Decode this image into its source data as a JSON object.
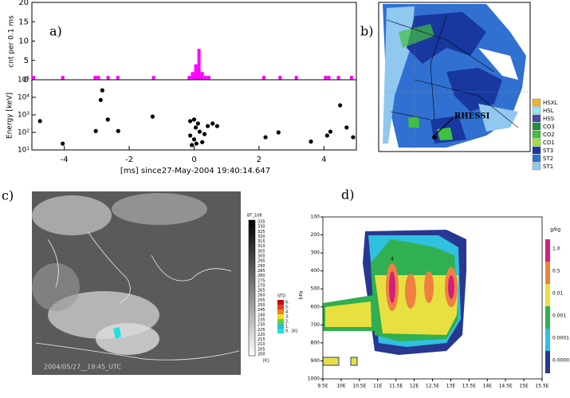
{
  "chart_data": [
    {
      "type": "bar",
      "panel_label": "a)",
      "ylabel": "cnt per 0.1 ms",
      "color": "#ff00ff",
      "x": [
        -4.95,
        -4.05,
        -3.05,
        -2.95,
        -2.65,
        -2.35,
        -1.25,
        -0.15,
        -0.05,
        0.05,
        0.15,
        0.25,
        0.35,
        0.45,
        2.15,
        2.65,
        3.15,
        4.05,
        4.15,
        4.45,
        4.85
      ],
      "values": [
        1,
        1,
        1,
        1,
        1,
        1,
        1,
        1,
        2,
        4,
        8,
        2,
        1,
        1,
        1,
        1,
        1,
        1,
        1,
        1,
        1
      ],
      "xlim": [
        -5,
        5
      ],
      "ylim": [
        0,
        20
      ],
      "yticks": [
        0,
        5,
        10,
        15,
        20
      ]
    },
    {
      "type": "scatter",
      "ylabel": "Energy [keV]",
      "xlabel": "[ms] since27-May-2004 19:40:14.647",
      "color": "#000000",
      "log_y": true,
      "x": [
        -4.75,
        -4.05,
        -3.03,
        -2.88,
        -2.83,
        -2.66,
        -2.34,
        -1.28,
        -0.12,
        0,
        0.12,
        0.05,
        0.17,
        -0.12,
        0,
        -0.07,
        0.07,
        0.25,
        0.32,
        0.42,
        0.57,
        0.71,
        2.2,
        2.6,
        3.6,
        4.1,
        4.2,
        4.5,
        4.7,
        4.9
      ],
      "values": [
        440,
        23,
        120,
        7000,
        25000,
        540,
        120,
        800,
        440,
        540,
        320,
        190,
        110,
        66,
        40,
        19,
        23,
        28,
        80,
        230,
        320,
        230,
        53,
        100,
        30,
        66,
        110,
        3500,
        190,
        53
      ],
      "xlim": [
        -5,
        5
      ],
      "xticks": [
        -4,
        -2,
        0,
        2,
        4
      ],
      "ylim": [
        10,
        100000
      ],
      "yticks": [
        {
          "value": 10,
          "label": "10¹"
        },
        {
          "value": 100,
          "label": "10²"
        },
        {
          "value": 1000,
          "label": "10³"
        },
        {
          "value": 10000,
          "label": "10⁴"
        },
        {
          "value": 100000,
          "label": "10⁵"
        }
      ]
    },
    {
      "type": "contour",
      "panel_label": "d)",
      "ylabel": "hPa",
      "annotation": "4",
      "xlim": [
        9.5,
        15.5
      ],
      "xticks": [
        {
          "value": 9.5,
          "label": "9.5E"
        },
        {
          "value": 10,
          "label": "10E"
        },
        {
          "value": 10.5,
          "label": "10.5E"
        },
        {
          "value": 11,
          "label": "11E"
        },
        {
          "value": 11.5,
          "label": "11.5E"
        },
        {
          "value": 12,
          "label": "12E"
        },
        {
          "value": 12.5,
          "label": "12.5E"
        },
        {
          "value": 13,
          "label": "13E"
        },
        {
          "value": 13.5,
          "label": "13.5E"
        },
        {
          "value": 14,
          "label": "14E"
        },
        {
          "value": 14.5,
          "label": "14.5E"
        },
        {
          "value": 15,
          "label": "15E"
        },
        {
          "value": 15.5,
          "label": "15.5E"
        }
      ],
      "ylim": [
        1000,
        100
      ],
      "yticks": [
        100,
        200,
        300,
        400,
        500,
        600,
        700,
        800,
        900,
        1000
      ],
      "colorbar": {
        "title": "g/kg",
        "labels": [
          "1.0",
          "0.5",
          "0.01",
          "0.001",
          "0.0001",
          "0.00001"
        ],
        "colors": [
          "#d0207a",
          "#f08040",
          "#e8e040",
          "#30b050",
          "#30c0e0",
          "#283890"
        ]
      }
    }
  ],
  "panel_b": {
    "panel_label": "b)",
    "annotation": "RHESSI",
    "legend": [
      {
        "name": "HSXL",
        "color": "#f0b030"
      },
      {
        "name": "HSL",
        "color": "#90e8e8"
      },
      {
        "name": "HSS",
        "color": "#4848a8"
      },
      {
        "name": "CO3",
        "color": "#209040"
      },
      {
        "name": "CO2",
        "color": "#40c040"
      },
      {
        "name": "CO1",
        "color": "#a0e040"
      },
      {
        "name": "ST3",
        "color": "#1838a0"
      },
      {
        "name": "ST2",
        "color": "#3070d0"
      },
      {
        "name": "ST1",
        "color": "#90c8f0"
      }
    ]
  },
  "panel_c": {
    "panel_label": "c)",
    "timestamp": "2004/05/27__19:45_UTC",
    "bt_title": "BT_108",
    "bt_ticks": [
      335,
      330,
      325,
      320,
      315,
      310,
      305,
      300,
      295,
      290,
      285,
      280,
      275,
      270,
      265,
      260,
      255,
      250,
      245,
      240,
      235,
      230,
      225,
      220,
      215,
      210,
      205,
      200
    ],
    "bt_unit": "[K]",
    "std_title": "STD",
    "std_labels": [
      "6.",
      "5.",
      "4.",
      "3.",
      "2.",
      "1.",
      "0."
    ],
    "std_unit": "[K]",
    "std_colors": [
      "#c01010",
      "#e04020",
      "#f08020",
      "#f0e020",
      "#60d040",
      "#30c0c0",
      "#20e0e0"
    ]
  }
}
